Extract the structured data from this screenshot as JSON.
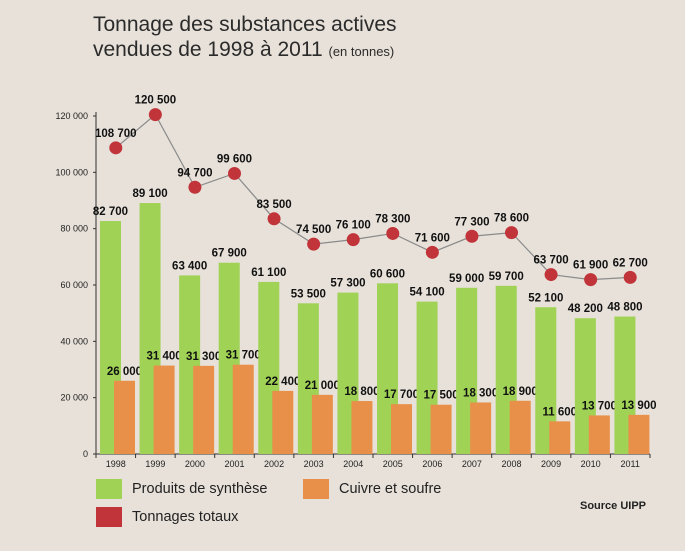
{
  "title": {
    "line1": "Tonnage des substances actives",
    "line2": "vendues de 1998 à 2011",
    "unit": "(en tonnes)"
  },
  "source": "Source UIPP",
  "colors": {
    "synthese": "#9fd255",
    "cuivre": "#e8904a",
    "totaux": "#c0343a",
    "line": "#8a8a8a",
    "axis": "#333333",
    "background": "#e7e1d9"
  },
  "chart_data": {
    "type": "bar",
    "categories": [
      "1998",
      "1999",
      "2000",
      "2001",
      "2002",
      "2003",
      "2004",
      "2005",
      "2006",
      "2007",
      "2008",
      "2009",
      "2010",
      "2011"
    ],
    "series": [
      {
        "name": "Produits de synthèse",
        "kind": "bar",
        "values": [
          82700,
          89100,
          63400,
          67900,
          61100,
          53500,
          57300,
          60600,
          54100,
          59000,
          59700,
          52100,
          48200,
          48800
        ],
        "labels": [
          "82 700",
          "89 100",
          "63 400",
          "67 900",
          "61 100",
          "53 500",
          "57 300",
          "60 600",
          "54 100",
          "59 000",
          "59 700",
          "52 100",
          "48 200",
          "48 800"
        ]
      },
      {
        "name": "Cuivre et soufre",
        "kind": "bar",
        "values": [
          26000,
          31400,
          31300,
          31700,
          22400,
          21000,
          18800,
          17700,
          17500,
          18300,
          18900,
          11600,
          13700,
          13900
        ],
        "labels": [
          "26 000",
          "31 400",
          "31 300",
          "31 700",
          "22 400",
          "21 000",
          "18 800",
          "17 700",
          "17 500",
          "18 300",
          "18 900",
          "11 600",
          "13 700",
          "13 900"
        ]
      },
      {
        "name": "Tonnages totaux",
        "kind": "line",
        "values": [
          108700,
          120500,
          94700,
          99600,
          83500,
          74500,
          76100,
          78300,
          71600,
          77300,
          78600,
          63700,
          61900,
          62700
        ],
        "labels": [
          "108 700",
          "120 500",
          "94 700",
          "99 600",
          "83 500",
          "74 500",
          "76 100",
          "78 300",
          "71 600",
          "77 300",
          "78 600",
          "63 700",
          "61 900",
          "62 700"
        ]
      }
    ],
    "yticks": [
      0,
      20000,
      40000,
      60000,
      80000,
      100000,
      120000
    ],
    "ytick_labels": [
      "0",
      "20 000",
      "40 000",
      "60 000",
      "80 000",
      "100 000",
      "120 000"
    ],
    "ylim": [
      0,
      120000
    ],
    "grid": false,
    "legend": "bottom-left",
    "xlabel": "",
    "ylabel": ""
  }
}
